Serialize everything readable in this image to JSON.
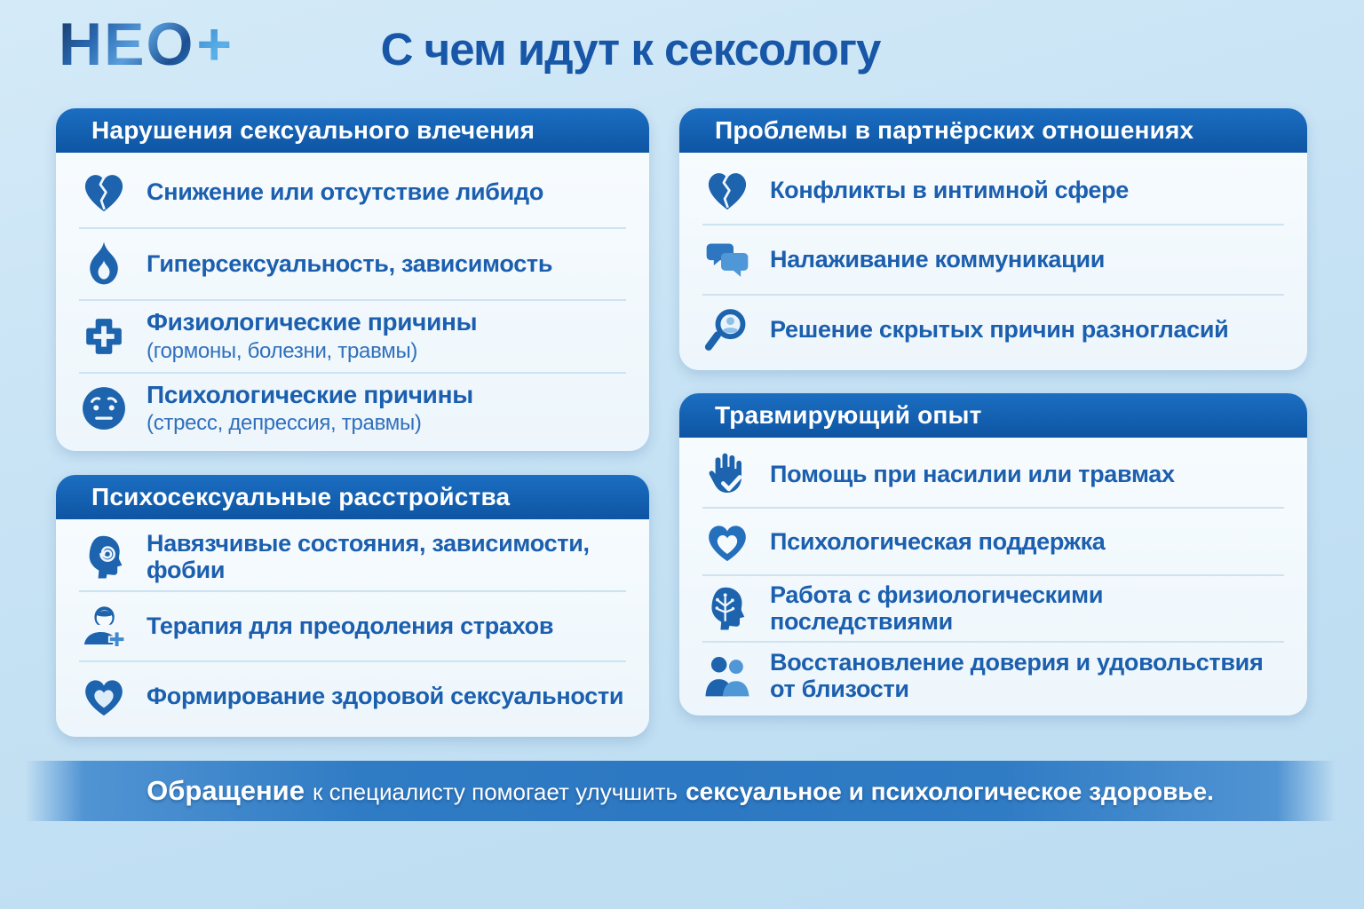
{
  "header": {
    "logo_text": "НЕО",
    "logo_plus": "+",
    "title": "С чем идут к сексологу"
  },
  "colors": {
    "background": "#c6e2f4",
    "card_header_top": "#1b6ec2",
    "card_header_bottom": "#0e55a3",
    "card_background": "#f8fcfe",
    "item_text": "#1b5fae",
    "subtext": "#3170bd",
    "title_text": "#1857a8",
    "icon_blue": "#1d63ad",
    "banner_blue": "#2d78c2"
  },
  "cards": [
    {
      "id": "libido-disorders",
      "column": "left",
      "title": "Нарушения сексуального влечения",
      "items": [
        {
          "icon": "broken-heart-icon",
          "text": "Снижение или отсутствие либидо"
        },
        {
          "icon": "flame-icon",
          "text": "Гиперсексуальность, зависимость"
        },
        {
          "icon": "medical-cross-icon",
          "text": "Физиологические причины",
          "subtext": "(гормоны, болезни, травмы)"
        },
        {
          "icon": "worried-face-icon",
          "text": "Психологические причины",
          "subtext": "(стресс, депрессия, травмы)"
        }
      ]
    },
    {
      "id": "partner-problems",
      "column": "right",
      "title": "Проблемы в партнёрских отношениях",
      "items": [
        {
          "icon": "broken-heart-icon",
          "text": "Конфликты в интимной сфере"
        },
        {
          "icon": "chat-bubbles-icon",
          "text": "Налаживание коммуникации"
        },
        {
          "icon": "magnifier-person-icon",
          "text": "Решение скрытых причин разногласий"
        }
      ]
    },
    {
      "id": "psychosexual-disorders",
      "column": "left",
      "title": "Психосексуальные расстройства",
      "items": [
        {
          "icon": "head-spiral-icon",
          "text": "Навязчивые состояния, зависимости, фобии"
        },
        {
          "icon": "person-plus-icon",
          "text": "Терапия для преодоления страхов"
        },
        {
          "icon": "heart-in-heart-icon",
          "text": "Формирование здоровой сексуальности"
        }
      ]
    },
    {
      "id": "traumatic-experience",
      "column": "right",
      "title": "Травмирующий опыт",
      "items": [
        {
          "icon": "stop-hand-icon",
          "text": "Помощь при насилии или травмах"
        },
        {
          "icon": "support-heart-icon",
          "text": "Психологическая поддержка"
        },
        {
          "icon": "head-tree-icon",
          "text": "Работа с физиологическими последствиями"
        },
        {
          "icon": "couple-icon",
          "text": "Восстановление доверия и удовольствия от близости"
        }
      ]
    }
  ],
  "banner": {
    "lead": "Обращение",
    "middle": "к специалисту помогает улучшить",
    "emphasis": "сексуальное и психологическое здоровье."
  }
}
